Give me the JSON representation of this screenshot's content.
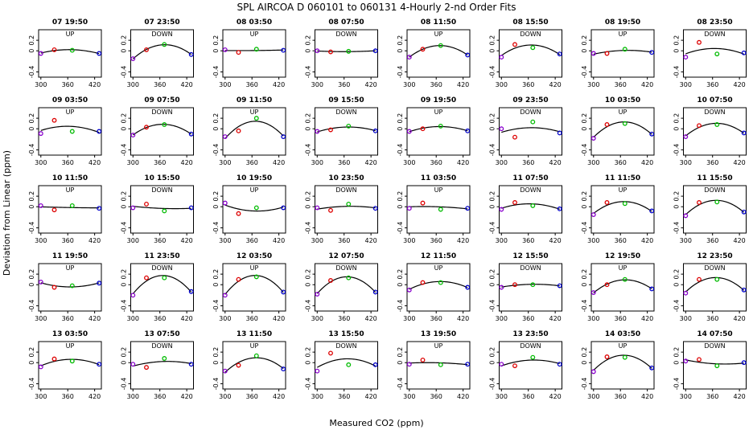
{
  "figure": {
    "title": "SPL   AIRCOA D   060101 to 060131   4-Hourly 2-nd Order Fits",
    "xlabel": "Measured CO2 (ppm)",
    "ylabel": "Deviation from Linear (ppm)"
  },
  "colors": {
    "curve": "#000000",
    "standard_low": "#8800cc",
    "standard_mid1": "#dd0000",
    "standard_mid2": "#00bb00",
    "standard_high": "#0000cc"
  },
  "chart_data": {
    "type": "scatter",
    "layout_grid": {
      "rows": 5,
      "cols": 8
    },
    "xlim": [
      295,
      435
    ],
    "ylim": [
      -0.5,
      0.4
    ],
    "xticks": [
      300,
      360,
      420
    ],
    "yticks": [
      -0.4,
      0,
      0.2
    ],
    "x": [
      300,
      330,
      370,
      430
    ],
    "panels": [
      {
        "label": "07 19:50",
        "dir": "UP",
        "y": [
          -0.05,
          0.02,
          0.01,
          -0.05
        ]
      },
      {
        "label": "07 23:50",
        "dir": "DOWN",
        "y": [
          -0.15,
          0.02,
          0.12,
          -0.07
        ]
      },
      {
        "label": "08 03:50",
        "dir": "UP",
        "y": [
          0.02,
          -0.03,
          0.03,
          0.01
        ]
      },
      {
        "label": "08 07:50",
        "dir": "DOWN",
        "y": [
          0.0,
          -0.02,
          -0.01,
          0.0
        ]
      },
      {
        "label": "08 11:50",
        "dir": "UP",
        "y": [
          -0.12,
          0.03,
          0.1,
          -0.08
        ]
      },
      {
        "label": "08 15:50",
        "dir": "DOWN",
        "y": [
          -0.12,
          0.12,
          0.06,
          -0.06
        ]
      },
      {
        "label": "08 19:50",
        "dir": "UP",
        "y": [
          -0.05,
          -0.05,
          0.03,
          -0.03
        ]
      },
      {
        "label": "08 23:50",
        "dir": "DOWN",
        "y": [
          -0.12,
          0.16,
          -0.06,
          -0.04
        ]
      },
      {
        "label": "09 03:50",
        "dir": "UP",
        "y": [
          -0.09,
          0.16,
          -0.05,
          -0.05
        ]
      },
      {
        "label": "09 07:50",
        "dir": "DOWN",
        "y": [
          -0.12,
          0.03,
          0.08,
          -0.1
        ]
      },
      {
        "label": "09 11:50",
        "dir": "UP",
        "y": [
          -0.15,
          -0.04,
          0.2,
          -0.15
        ]
      },
      {
        "label": "09 15:50",
        "dir": "DOWN",
        "y": [
          -0.05,
          -0.02,
          0.05,
          -0.04
        ]
      },
      {
        "label": "09 19:50",
        "dir": "UP",
        "y": [
          -0.05,
          0.0,
          0.05,
          -0.04
        ]
      },
      {
        "label": "09 23:50",
        "dir": "DOWN",
        "y": [
          0.0,
          -0.16,
          0.13,
          -0.08
        ]
      },
      {
        "label": "10 03:50",
        "dir": "UP",
        "y": [
          -0.18,
          0.08,
          0.1,
          -0.1
        ]
      },
      {
        "label": "10 07:50",
        "dir": "DOWN",
        "y": [
          -0.15,
          0.06,
          0.08,
          -0.08
        ]
      },
      {
        "label": "10 11:50",
        "dir": "UP",
        "y": [
          0.02,
          -0.06,
          0.02,
          -0.03
        ]
      },
      {
        "label": "10 15:50",
        "dir": "DOWN",
        "y": [
          -0.02,
          0.05,
          -0.08,
          -0.02
        ]
      },
      {
        "label": "10 19:50",
        "dir": "UP",
        "y": [
          0.07,
          -0.13,
          -0.02,
          -0.02
        ]
      },
      {
        "label": "10 23:50",
        "dir": "DOWN",
        "y": [
          -0.02,
          -0.07,
          0.05,
          -0.03
        ]
      },
      {
        "label": "11 03:50",
        "dir": "UP",
        "y": [
          -0.03,
          0.07,
          -0.05,
          -0.03
        ]
      },
      {
        "label": "11 07:50",
        "dir": "DOWN",
        "y": [
          -0.05,
          0.08,
          0.02,
          -0.04
        ]
      },
      {
        "label": "11 11:50",
        "dir": "UP",
        "y": [
          -0.15,
          0.08,
          0.06,
          -0.08
        ]
      },
      {
        "label": "11 15:50",
        "dir": "DOWN",
        "y": [
          -0.17,
          0.08,
          0.09,
          -0.1
        ]
      },
      {
        "label": "11 19:50",
        "dir": "UP",
        "y": [
          0.05,
          -0.05,
          -0.02,
          0.03
        ]
      },
      {
        "label": "11 23:50",
        "dir": "DOWN",
        "y": [
          -0.2,
          0.13,
          0.13,
          -0.13
        ]
      },
      {
        "label": "12 03:50",
        "dir": "UP",
        "y": [
          -0.2,
          0.1,
          0.15,
          -0.14
        ]
      },
      {
        "label": "12 07:50",
        "dir": "DOWN",
        "y": [
          -0.18,
          0.08,
          0.13,
          -0.14
        ]
      },
      {
        "label": "12 11:50",
        "dir": "UP",
        "y": [
          -0.1,
          0.04,
          0.04,
          -0.05
        ]
      },
      {
        "label": "12 15:50",
        "dir": "DOWN",
        "y": [
          -0.05,
          0.0,
          0.0,
          -0.02
        ]
      },
      {
        "label": "12 19:50",
        "dir": "UP",
        "y": [
          -0.15,
          0.0,
          0.1,
          -0.08
        ]
      },
      {
        "label": "12 23:50",
        "dir": "DOWN",
        "y": [
          -0.16,
          0.1,
          0.1,
          -0.1
        ]
      },
      {
        "label": "13 03:50",
        "dir": "UP",
        "y": [
          -0.08,
          0.07,
          0.03,
          -0.03
        ]
      },
      {
        "label": "13 07:50",
        "dir": "DOWN",
        "y": [
          -0.03,
          -0.09,
          0.08,
          -0.03
        ]
      },
      {
        "label": "13 11:50",
        "dir": "UP",
        "y": [
          -0.16,
          -0.05,
          0.13,
          -0.12
        ]
      },
      {
        "label": "13 15:50",
        "dir": "DOWN",
        "y": [
          -0.16,
          0.18,
          -0.04,
          -0.04
        ]
      },
      {
        "label": "13 19:50",
        "dir": "UP",
        "y": [
          -0.03,
          0.05,
          -0.04,
          -0.03
        ]
      },
      {
        "label": "13 23:50",
        "dir": "DOWN",
        "y": [
          -0.03,
          -0.06,
          0.1,
          -0.03
        ]
      },
      {
        "label": "14 03:50",
        "dir": "UP",
        "y": [
          -0.17,
          0.11,
          0.1,
          -0.1
        ]
      },
      {
        "label": "14 07:50",
        "dir": "DOWN",
        "y": [
          0.03,
          0.06,
          -0.06,
          0.0
        ]
      }
    ]
  }
}
